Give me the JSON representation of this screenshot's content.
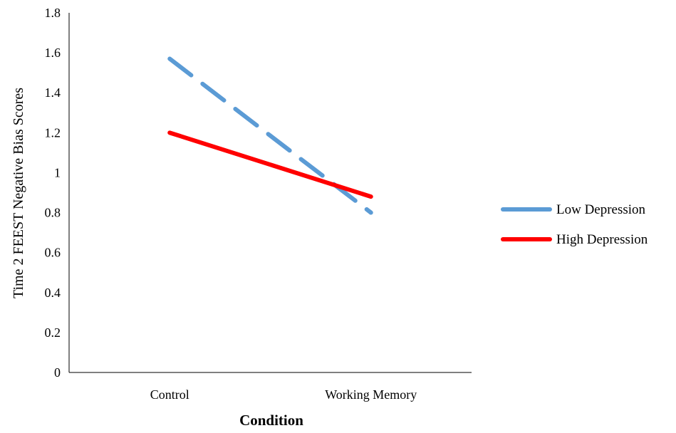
{
  "chart_data": {
    "type": "line",
    "categories": [
      "Control",
      "Working Memory"
    ],
    "series": [
      {
        "name": "Low Depression",
        "values": [
          1.57,
          0.8
        ],
        "color": "#5B9BD5",
        "dash": "dashed"
      },
      {
        "name": "High Depression",
        "values": [
          1.2,
          0.88
        ],
        "color": "#FF0000",
        "dash": "solid"
      }
    ],
    "title": "",
    "xlabel": "Condition",
    "ylabel": "Time 2 FEEST Negative Bias Scores",
    "ylim": [
      0,
      1.8
    ],
    "yticks": [
      "0",
      "0.2",
      "0.4",
      "0.6",
      "0.8",
      "1",
      "1.2",
      "1.4",
      "1.6",
      "1.8"
    ],
    "grid": false,
    "legend_position": "right"
  }
}
